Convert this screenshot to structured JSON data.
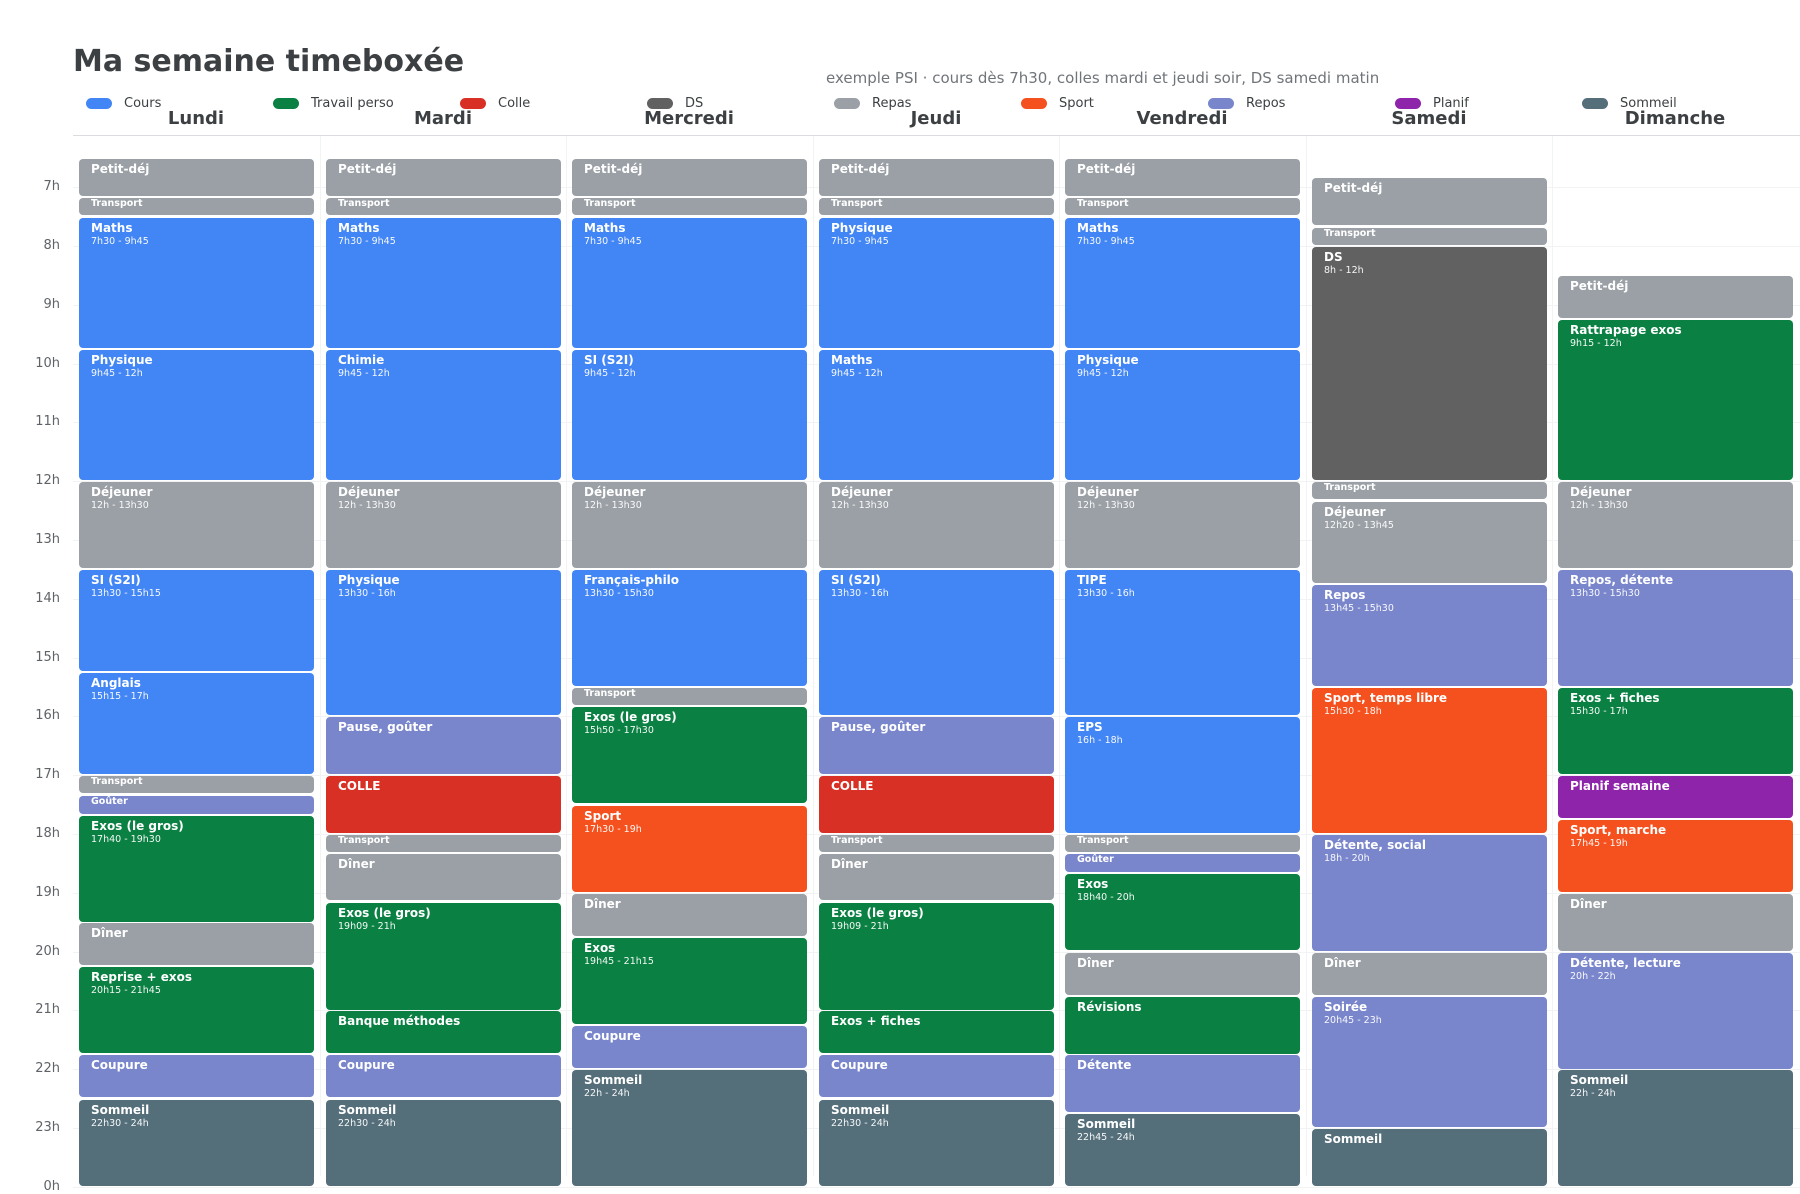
{
  "title": "Ma semaine timeboxée",
  "subtitle": "exemple PSI · cours dès 7h30, colles mardi et jeudi soir, DS samedi matin",
  "categories": {
    "cours": {
      "label": "Cours",
      "color": "#4285f4"
    },
    "perso": {
      "label": "Travail perso",
      "color": "#0b8043"
    },
    "colle": {
      "label": "Colle",
      "color": "#d93025"
    },
    "ds": {
      "label": "DS",
      "color": "#616161"
    },
    "repas": {
      "label": "Repas",
      "color": "#9aa0a6"
    },
    "sport": {
      "label": "Sport",
      "color": "#f4511e"
    },
    "repos": {
      "label": "Repos",
      "color": "#7986cb"
    },
    "planif": {
      "label": "Planif",
      "color": "#8e24aa"
    },
    "sommeil": {
      "label": "Sommeil",
      "color": "#546e7a"
    }
  },
  "legend_order": [
    "cours",
    "perso",
    "colle",
    "ds",
    "repas",
    "sport",
    "repos",
    "planif",
    "sommeil"
  ],
  "hours": [
    "7h",
    "8h",
    "9h",
    "10h",
    "11h",
    "12h",
    "13h",
    "14h",
    "15h",
    "16h",
    "17h",
    "18h",
    "19h",
    "20h",
    "21h",
    "22h",
    "23h",
    "0h"
  ],
  "days": [
    {
      "name": "Lundi",
      "events": [
        {
          "title": "Petit-déj",
          "time": "",
          "cat": "repas",
          "start": 6.5,
          "end": 7.17
        },
        {
          "title": "Transport",
          "time": "",
          "cat": "repas",
          "start": 7.17,
          "end": 7.5
        },
        {
          "title": "Maths",
          "time": "7h30 - 9h45",
          "cat": "cours",
          "start": 7.5,
          "end": 9.75
        },
        {
          "title": "Physique",
          "time": "9h45 - 12h",
          "cat": "cours",
          "start": 9.75,
          "end": 12
        },
        {
          "title": "Déjeuner",
          "time": "12h - 13h30",
          "cat": "repas",
          "start": 12,
          "end": 13.5
        },
        {
          "title": "SI (S2I)",
          "time": "13h30 - 15h15",
          "cat": "cours",
          "start": 13.5,
          "end": 15.25
        },
        {
          "title": "Anglais",
          "time": "15h15 - 17h",
          "cat": "cours",
          "start": 15.25,
          "end": 17
        },
        {
          "title": "Transport",
          "time": "",
          "cat": "repas",
          "start": 17,
          "end": 17.33
        },
        {
          "title": "Goûter",
          "time": "",
          "cat": "repos",
          "start": 17.33,
          "end": 17.67
        },
        {
          "title": "Exos (le gros)",
          "time": "17h40 - 19h30",
          "cat": "perso",
          "start": 17.67,
          "end": 19.5
        },
        {
          "title": "Dîner",
          "time": "",
          "cat": "repas",
          "start": 19.5,
          "end": 20.25
        },
        {
          "title": "Reprise + exos",
          "time": "20h15 - 21h45",
          "cat": "perso",
          "start": 20.25,
          "end": 21.75
        },
        {
          "title": "Coupure",
          "time": "",
          "cat": "repos",
          "start": 21.75,
          "end": 22.5
        },
        {
          "title": "Sommeil",
          "time": "22h30 - 24h",
          "cat": "sommeil",
          "start": 22.5,
          "end": 24
        }
      ]
    },
    {
      "name": "Mardi",
      "events": [
        {
          "title": "Petit-déj",
          "time": "",
          "cat": "repas",
          "start": 6.5,
          "end": 7.17
        },
        {
          "title": "Transport",
          "time": "",
          "cat": "repas",
          "start": 7.17,
          "end": 7.5
        },
        {
          "title": "Maths",
          "time": "7h30 - 9h45",
          "cat": "cours",
          "start": 7.5,
          "end": 9.75
        },
        {
          "title": "Chimie",
          "time": "9h45 - 12h",
          "cat": "cours",
          "start": 9.75,
          "end": 12
        },
        {
          "title": "Déjeuner",
          "time": "12h - 13h30",
          "cat": "repas",
          "start": 12,
          "end": 13.5
        },
        {
          "title": "Physique",
          "time": "13h30 - 16h",
          "cat": "cours",
          "start": 13.5,
          "end": 16
        },
        {
          "title": "Pause, goûter",
          "time": "",
          "cat": "repos",
          "start": 16,
          "end": 17
        },
        {
          "title": "COLLE",
          "time": "",
          "cat": "colle",
          "start": 17,
          "end": 18
        },
        {
          "title": "Transport",
          "time": "",
          "cat": "repas",
          "start": 18,
          "end": 18.33
        },
        {
          "title": "Dîner",
          "time": "",
          "cat": "repas",
          "start": 18.33,
          "end": 19.15
        },
        {
          "title": "Exos (le gros)",
          "time": "19h09 - 21h",
          "cat": "perso",
          "start": 19.15,
          "end": 21
        },
        {
          "title": "Banque méthodes",
          "time": "",
          "cat": "perso",
          "start": 21,
          "end": 21.75
        },
        {
          "title": "Coupure",
          "time": "",
          "cat": "repos",
          "start": 21.75,
          "end": 22.5
        },
        {
          "title": "Sommeil",
          "time": "22h30 - 24h",
          "cat": "sommeil",
          "start": 22.5,
          "end": 24
        }
      ]
    },
    {
      "name": "Mercredi",
      "events": [
        {
          "title": "Petit-déj",
          "time": "",
          "cat": "repas",
          "start": 6.5,
          "end": 7.17
        },
        {
          "title": "Transport",
          "time": "",
          "cat": "repas",
          "start": 7.17,
          "end": 7.5
        },
        {
          "title": "Maths",
          "time": "7h30 - 9h45",
          "cat": "cours",
          "start": 7.5,
          "end": 9.75
        },
        {
          "title": "SI (S2I)",
          "time": "9h45 - 12h",
          "cat": "cours",
          "start": 9.75,
          "end": 12
        },
        {
          "title": "Déjeuner",
          "time": "12h - 13h30",
          "cat": "repas",
          "start": 12,
          "end": 13.5
        },
        {
          "title": "Français-philo",
          "time": "13h30 - 15h30",
          "cat": "cours",
          "start": 13.5,
          "end": 15.5
        },
        {
          "title": "Transport",
          "time": "",
          "cat": "repas",
          "start": 15.5,
          "end": 15.83
        },
        {
          "title": "Exos (le gros)",
          "time": "15h50 - 17h30",
          "cat": "perso",
          "start": 15.83,
          "end": 17.5
        },
        {
          "title": "Sport",
          "time": "17h30 - 19h",
          "cat": "sport",
          "start": 17.5,
          "end": 19
        },
        {
          "title": "Dîner",
          "time": "",
          "cat": "repas",
          "start": 19,
          "end": 19.75
        },
        {
          "title": "Exos",
          "time": "19h45 - 21h15",
          "cat": "perso",
          "start": 19.75,
          "end": 21.25
        },
        {
          "title": "Coupure",
          "time": "",
          "cat": "repos",
          "start": 21.25,
          "end": 22
        },
        {
          "title": "Sommeil",
          "time": "22h - 24h",
          "cat": "sommeil",
          "start": 22,
          "end": 24
        }
      ]
    },
    {
      "name": "Jeudi",
      "events": [
        {
          "title": "Petit-déj",
          "time": "",
          "cat": "repas",
          "start": 6.5,
          "end": 7.17
        },
        {
          "title": "Transport",
          "time": "",
          "cat": "repas",
          "start": 7.17,
          "end": 7.5
        },
        {
          "title": "Physique",
          "time": "7h30 - 9h45",
          "cat": "cours",
          "start": 7.5,
          "end": 9.75
        },
        {
          "title": "Maths",
          "time": "9h45 - 12h",
          "cat": "cours",
          "start": 9.75,
          "end": 12
        },
        {
          "title": "Déjeuner",
          "time": "12h - 13h30",
          "cat": "repas",
          "start": 12,
          "end": 13.5
        },
        {
          "title": "SI (S2I)",
          "time": "13h30 - 16h",
          "cat": "cours",
          "start": 13.5,
          "end": 16
        },
        {
          "title": "Pause, goûter",
          "time": "",
          "cat": "repos",
          "start": 16,
          "end": 17
        },
        {
          "title": "COLLE",
          "time": "",
          "cat": "colle",
          "start": 17,
          "end": 18
        },
        {
          "title": "Transport",
          "time": "",
          "cat": "repas",
          "start": 18,
          "end": 18.33
        },
        {
          "title": "Dîner",
          "time": "",
          "cat": "repas",
          "start": 18.33,
          "end": 19.15
        },
        {
          "title": "Exos (le gros)",
          "time": "19h09 - 21h",
          "cat": "perso",
          "start": 19.15,
          "end": 21
        },
        {
          "title": "Exos + fiches",
          "time": "",
          "cat": "perso",
          "start": 21,
          "end": 21.75
        },
        {
          "title": "Coupure",
          "time": "",
          "cat": "repos",
          "start": 21.75,
          "end": 22.5
        },
        {
          "title": "Sommeil",
          "time": "22h30 - 24h",
          "cat": "sommeil",
          "start": 22.5,
          "end": 24
        }
      ]
    },
    {
      "name": "Vendredi",
      "events": [
        {
          "title": "Petit-déj",
          "time": "",
          "cat": "repas",
          "start": 6.5,
          "end": 7.17
        },
        {
          "title": "Transport",
          "time": "",
          "cat": "repas",
          "start": 7.17,
          "end": 7.5
        },
        {
          "title": "Maths",
          "time": "7h30 - 9h45",
          "cat": "cours",
          "start": 7.5,
          "end": 9.75
        },
        {
          "title": "Physique",
          "time": "9h45 - 12h",
          "cat": "cours",
          "start": 9.75,
          "end": 12
        },
        {
          "title": "Déjeuner",
          "time": "12h - 13h30",
          "cat": "repas",
          "start": 12,
          "end": 13.5
        },
        {
          "title": "TIPE",
          "time": "13h30 - 16h",
          "cat": "cours",
          "start": 13.5,
          "end": 16
        },
        {
          "title": "EPS",
          "time": "16h - 18h",
          "cat": "cours",
          "start": 16,
          "end": 18
        },
        {
          "title": "Transport",
          "time": "",
          "cat": "repas",
          "start": 18,
          "end": 18.33
        },
        {
          "title": "Goûter",
          "time": "",
          "cat": "repos",
          "start": 18.33,
          "end": 18.67
        },
        {
          "title": "Exos",
          "time": "18h40 - 20h",
          "cat": "perso",
          "start": 18.67,
          "end": 20
        },
        {
          "title": "Dîner",
          "time": "",
          "cat": "repas",
          "start": 20,
          "end": 20.75
        },
        {
          "title": "Révisions",
          "time": "",
          "cat": "perso",
          "start": 20.75,
          "end": 21.75
        },
        {
          "title": "Détente",
          "time": "",
          "cat": "repos",
          "start": 21.75,
          "end": 22.75
        },
        {
          "title": "Sommeil",
          "time": "22h45 - 24h",
          "cat": "sommeil",
          "start": 22.75,
          "end": 24
        }
      ]
    },
    {
      "name": "Samedi",
      "events": [
        {
          "title": "Petit-déj",
          "time": "",
          "cat": "repas",
          "start": 6.83,
          "end": 7.67
        },
        {
          "title": "Transport",
          "time": "",
          "cat": "repas",
          "start": 7.67,
          "end": 8
        },
        {
          "title": "DS",
          "time": "8h - 12h",
          "cat": "ds",
          "start": 8,
          "end": 12
        },
        {
          "title": "Transport",
          "time": "",
          "cat": "repas",
          "start": 12,
          "end": 12.33
        },
        {
          "title": "Déjeuner",
          "time": "12h20 - 13h45",
          "cat": "repas",
          "start": 12.33,
          "end": 13.75
        },
        {
          "title": "Repos",
          "time": "13h45 - 15h30",
          "cat": "repos",
          "start": 13.75,
          "end": 15.5
        },
        {
          "title": "Sport, temps libre",
          "time": "15h30 - 18h",
          "cat": "sport",
          "start": 15.5,
          "end": 18
        },
        {
          "title": "Détente, social",
          "time": "18h - 20h",
          "cat": "repos",
          "start": 18,
          "end": 20
        },
        {
          "title": "Dîner",
          "time": "",
          "cat": "repas",
          "start": 20,
          "end": 20.75
        },
        {
          "title": "Soirée",
          "time": "20h45 - 23h",
          "cat": "repos",
          "start": 20.75,
          "end": 23
        },
        {
          "title": "Sommeil",
          "time": "",
          "cat": "sommeil",
          "start": 23,
          "end": 24
        }
      ]
    },
    {
      "name": "Dimanche",
      "events": [
        {
          "title": "Petit-déj",
          "time": "",
          "cat": "repas",
          "start": 8.5,
          "end": 9.25
        },
        {
          "title": "Rattrapage exos",
          "time": "9h15 - 12h",
          "cat": "perso",
          "start": 9.25,
          "end": 12
        },
        {
          "title": "Déjeuner",
          "time": "12h - 13h30",
          "cat": "repas",
          "start": 12,
          "end": 13.5
        },
        {
          "title": "Repos, détente",
          "time": "13h30 - 15h30",
          "cat": "repos",
          "start": 13.5,
          "end": 15.5
        },
        {
          "title": "Exos + fiches",
          "time": "15h30 - 17h",
          "cat": "perso",
          "start": 15.5,
          "end": 17
        },
        {
          "title": "Planif semaine",
          "time": "",
          "cat": "planif",
          "start": 17,
          "end": 17.75
        },
        {
          "title": "Sport, marche",
          "time": "17h45 - 19h",
          "cat": "sport",
          "start": 17.75,
          "end": 19
        },
        {
          "title": "Dîner",
          "time": "",
          "cat": "repas",
          "start": 19,
          "end": 20
        },
        {
          "title": "Détente, lecture",
          "time": "20h - 22h",
          "cat": "repos",
          "start": 20,
          "end": 22
        },
        {
          "title": "Sommeil",
          "time": "22h - 24h",
          "cat": "sommeil",
          "start": 22,
          "end": 24
        }
      ]
    }
  ]
}
